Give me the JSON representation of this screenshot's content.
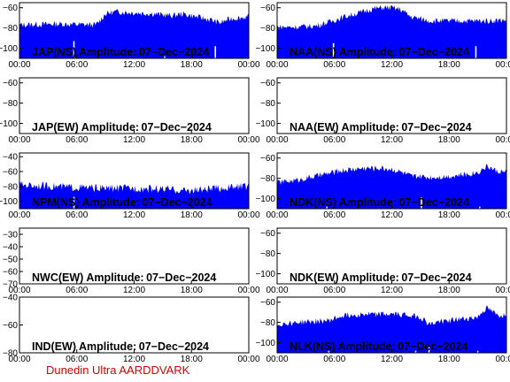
{
  "figure": {
    "footer": "Dunedin Ultra AARDDVARK",
    "background": "#ffffff",
    "series_color": "#0000ff",
    "footer_color": "#d40000"
  },
  "chart_data": [
    {
      "type": "area",
      "title": "JAP(NS) Amplitude: 07-Dec-2024",
      "x_ticks": [
        "00:00",
        "06:00",
        "12:00",
        "18:00",
        "00:00"
      ],
      "xlim_hours": [
        0,
        24
      ],
      "y_ticks": [
        -60,
        -80,
        -100
      ],
      "ylim": [
        -110,
        -55
      ],
      "has_data": true,
      "envelope": {
        "hours": [
          0,
          4,
          8,
          8.5,
          9,
          10,
          12,
          14,
          16,
          17,
          18,
          20,
          21,
          22,
          23,
          24
        ],
        "upper": [
          -74,
          -73,
          -74,
          -69,
          -63,
          -61,
          -62,
          -63,
          -65,
          -63,
          -65,
          -69,
          -72,
          -68,
          -67,
          -66
        ],
        "lower": [
          -80,
          -79,
          -80,
          -75,
          -69,
          -67,
          -68,
          -69,
          -71,
          -69,
          -71,
          -75,
          -78,
          -74,
          -73,
          -72
        ]
      },
      "dropouts": [
        {
          "hour": 5.7,
          "value": -93
        },
        {
          "hour": 15.2,
          "value": -108
        },
        {
          "hour": 20.5,
          "value": -98
        }
      ]
    },
    {
      "type": "area",
      "title": "NAA(NS) Amplitude: 07-Dec-2024",
      "x_ticks": [
        "00:00",
        "06:00",
        "12:00",
        "18:00",
        "00:00"
      ],
      "xlim_hours": [
        0,
        24
      ],
      "y_ticks": [
        -60,
        -80,
        -100
      ],
      "ylim": [
        -110,
        -55
      ],
      "has_data": true,
      "envelope": {
        "hours": [
          0,
          2,
          4,
          5.5,
          7,
          9,
          10,
          11,
          12,
          13,
          14,
          16,
          18,
          20,
          22,
          24
        ],
        "upper": [
          -76,
          -76,
          -75,
          -71,
          -66,
          -61,
          -58,
          -57,
          -57,
          -59,
          -66,
          -70,
          -70,
          -70,
          -70,
          -69
        ],
        "lower": [
          -82,
          -82,
          -81,
          -77,
          -72,
          -67,
          -64,
          -63,
          -63,
          -65,
          -72,
          -76,
          -76,
          -76,
          -76,
          -75
        ]
      },
      "dropouts": [
        {
          "hour": 5.9,
          "value": -95
        },
        {
          "hour": 20.8,
          "value": -98
        }
      ]
    },
    {
      "type": "area",
      "title": "JAP(EW) Amplitude: 07-Dec-2024",
      "x_ticks": [
        "00:00",
        "06:00",
        "12:00",
        "18:00",
        "00:00"
      ],
      "xlim_hours": [
        0,
        24
      ],
      "y_ticks": [
        -60,
        -80,
        -100
      ],
      "ylim": [
        -110,
        -55
      ],
      "has_data": false,
      "envelope": {
        "hours": [],
        "upper": [],
        "lower": []
      },
      "dropouts": []
    },
    {
      "type": "area",
      "title": "NAA(EW) Amplitude: 07-Dec-2024",
      "x_ticks": [
        "00:00",
        "06:00",
        "12:00",
        "18:00",
        "00:00"
      ],
      "xlim_hours": [
        0,
        24
      ],
      "y_ticks": [
        -60,
        -80,
        -100
      ],
      "ylim": [
        -110,
        -55
      ],
      "has_data": false,
      "envelope": {
        "hours": [],
        "upper": [],
        "lower": []
      },
      "dropouts": []
    },
    {
      "type": "area",
      "title": "NPM(NS) Amplitude: 07-Dec-2024",
      "x_ticks": [
        "00:00",
        "06:00",
        "12:00",
        "18:00",
        "00:00"
      ],
      "xlim_hours": [
        0,
        24
      ],
      "y_ticks": [
        -40,
        -60,
        -80,
        -100
      ],
      "ylim": [
        -110,
        -35
      ],
      "has_data": true,
      "envelope": {
        "hours": [
          0,
          3,
          6,
          9,
          12,
          15,
          17,
          18,
          20,
          22,
          24
        ],
        "upper": [
          -72,
          -74,
          -76,
          -77,
          -77,
          -78,
          -80,
          -80,
          -78,
          -76,
          -74
        ],
        "lower": [
          -83,
          -85,
          -87,
          -88,
          -88,
          -89,
          -91,
          -91,
          -89,
          -87,
          -85
        ]
      },
      "dropouts": [
        {
          "hour": 5.7,
          "value": -94
        }
      ]
    },
    {
      "type": "area",
      "title": "NDK(NS) Amplitude: 07-Dec-2024",
      "x_ticks": [
        "00:00",
        "06:00",
        "12:00",
        "18:00",
        "00:00"
      ],
      "xlim_hours": [
        0,
        24
      ],
      "y_ticks": [
        -60,
        -80,
        -100
      ],
      "ylim": [
        -110,
        -55
      ],
      "has_data": true,
      "envelope": {
        "hours": [
          0,
          2,
          4,
          5.5,
          7,
          9,
          11,
          12,
          13,
          14,
          16,
          18,
          20,
          21,
          22,
          23,
          24
        ],
        "upper": [
          -81,
          -79,
          -75,
          -72,
          -69,
          -67,
          -67,
          -68,
          -71,
          -75,
          -76,
          -75,
          -73,
          -71,
          -65,
          -70,
          -71
        ],
        "lower": [
          -87,
          -85,
          -81,
          -78,
          -75,
          -73,
          -73,
          -74,
          -77,
          -81,
          -82,
          -81,
          -79,
          -77,
          -71,
          -76,
          -77
        ]
      },
      "dropouts": [
        {
          "hour": 5.2,
          "value": -108
        },
        {
          "hour": 15.1,
          "value": -99
        },
        {
          "hour": 21.2,
          "value": -108
        }
      ]
    },
    {
      "type": "area",
      "title": "NWC(EW) Amplitude: 07-Dec-2024",
      "x_ticks": [
        "00:00",
        "06:00",
        "12:00",
        "18:00",
        "00:00"
      ],
      "xlim_hours": [
        0,
        24
      ],
      "y_ticks": [
        -30,
        -40,
        -50,
        -60,
        -70
      ],
      "ylim": [
        -70,
        -25
      ],
      "has_data": false,
      "envelope": {
        "hours": [],
        "upper": [],
        "lower": []
      },
      "dropouts": []
    },
    {
      "type": "area",
      "title": "NDK(EW) Amplitude: 07-Dec-2024",
      "x_ticks": [
        "00:00",
        "06:00",
        "12:00",
        "18:00",
        "00:00"
      ],
      "xlim_hours": [
        0,
        24
      ],
      "y_ticks": [
        -60,
        -80,
        -100
      ],
      "ylim": [
        -110,
        -55
      ],
      "has_data": false,
      "envelope": {
        "hours": [],
        "upper": [],
        "lower": []
      },
      "dropouts": []
    },
    {
      "type": "area",
      "title": "IND(EW) Amplitude: 07-Dec-2024",
      "x_ticks": [
        "00:00",
        "06:00",
        "12:00",
        "18:00",
        "00:00"
      ],
      "xlim_hours": [
        0,
        24
      ],
      "y_ticks": [
        -40,
        -60,
        -80
      ],
      "ylim": [
        -80,
        -40
      ],
      "has_data": false,
      "envelope": {
        "hours": [],
        "upper": [],
        "lower": []
      },
      "dropouts": []
    },
    {
      "type": "area",
      "title": "NLK(NS) Amplitude: 07-Dec-2024",
      "x_ticks": [
        "00:00",
        "06:00",
        "12:00",
        "18:00",
        "00:00"
      ],
      "xlim_hours": [
        0,
        24
      ],
      "y_ticks": [
        -60,
        -80,
        -100
      ],
      "ylim": [
        -110,
        -55
      ],
      "has_data": true,
      "envelope": {
        "hours": [
          0,
          2,
          4,
          5.5,
          7,
          9,
          11,
          13,
          14,
          15,
          16,
          17,
          18,
          20,
          21,
          21.5,
          22,
          23,
          24
        ],
        "upper": [
          -79,
          -77,
          -76,
          -75,
          -70,
          -69,
          -69,
          -69,
          -70,
          -72,
          -79,
          -76,
          -75,
          -73,
          -72,
          -66,
          -63,
          -70,
          -70
        ],
        "lower": [
          -85,
          -83,
          -82,
          -81,
          -76,
          -75,
          -75,
          -75,
          -76,
          -78,
          -85,
          -82,
          -81,
          -79,
          -78,
          -72,
          -69,
          -76,
          -76
        ]
      },
      "dropouts": [
        {
          "hour": 5.4,
          "value": -108
        },
        {
          "hour": 14.5,
          "value": -108
        },
        {
          "hour": 15.9,
          "value": -102
        },
        {
          "hour": 21.0,
          "value": -108
        }
      ]
    }
  ]
}
